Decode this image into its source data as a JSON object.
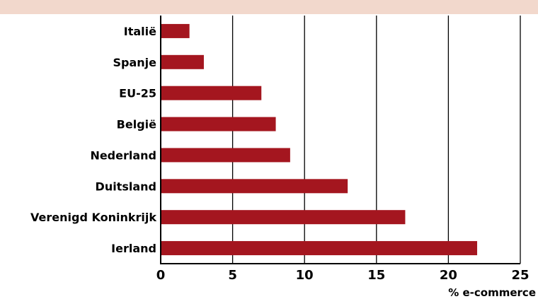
{
  "colors": {
    "band": "#f2d8cc",
    "bar": "#a4161f",
    "grid": "#000000",
    "text": "#000000"
  },
  "chart_data": {
    "type": "bar",
    "orientation": "horizontal",
    "title": "",
    "xlabel": "% e-commerce",
    "ylabel": "",
    "categories": [
      "Italië",
      "Spanje",
      "EU-25",
      "België",
      "Nederland",
      "Duitsland",
      "Verenigd Koninkrijk",
      "Ierland"
    ],
    "values": [
      2,
      3,
      7,
      8,
      9,
      13,
      17,
      22
    ],
    "xlim": [
      0,
      25
    ],
    "xticks": [
      0,
      5,
      10,
      15,
      20,
      25
    ],
    "grid": "vertical"
  }
}
